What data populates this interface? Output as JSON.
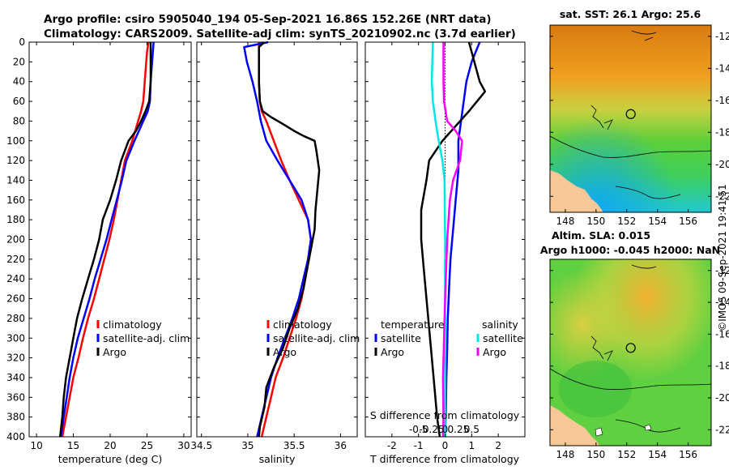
{
  "title_line1": "Argo profile: csiro 5905040_194 05-Sep-2021 16.86S 152.26E (NRT data)",
  "title_line2": "Climatology: CARS2009. Satellite-adj clim: synTS_20210902.nc (3.7d earlier)",
  "timestamp": "©IMOS 09-Sep-2021 19:41:51",
  "colors": {
    "climatology": "#ff0000",
    "satellite": "#0000ff",
    "argo": "#000000",
    "sal_satellite": "#00e6e6",
    "sal_argo": "#ff00ff",
    "land": "#f8c797"
  },
  "chart_data": [
    {
      "type": "line",
      "name": "temperature-profile",
      "xlabel": "temperature (deg C)",
      "ylabel": "",
      "xlim": [
        9,
        31
      ],
      "ylim": [
        0,
        400
      ],
      "y_reversed": true,
      "x_ticks": [
        "10",
        "15",
        "20",
        "25",
        "30"
      ],
      "x_tick_values": [
        10,
        15,
        20,
        25,
        30
      ],
      "y_ticks": [
        "0",
        "20",
        "40",
        "60",
        "80",
        "100",
        "120",
        "140",
        "160",
        "180",
        "200",
        "220",
        "240",
        "260",
        "280",
        "300",
        "320",
        "340",
        "360",
        "380",
        "400"
      ],
      "y_tick_values": [
        0,
        20,
        40,
        60,
        80,
        100,
        120,
        140,
        160,
        180,
        200,
        220,
        240,
        260,
        280,
        300,
        320,
        340,
        360,
        380,
        400
      ],
      "series": [
        {
          "name": "climatology",
          "color": "#ff0000",
          "points": [
            [
              25.2,
              0
            ],
            [
              25.0,
              10
            ],
            [
              24.8,
              30
            ],
            [
              24.6,
              50
            ],
            [
              24.5,
              60
            ],
            [
              24.2,
              70
            ],
            [
              23.8,
              80
            ],
            [
              23.0,
              100
            ],
            [
              22.0,
              120
            ],
            [
              21.5,
              140
            ],
            [
              21.0,
              160
            ],
            [
              20.5,
              180
            ],
            [
              19.9,
              200
            ],
            [
              19.2,
              220
            ],
            [
              18.5,
              240
            ],
            [
              17.8,
              260
            ],
            [
              17.0,
              280
            ],
            [
              16.3,
              300
            ],
            [
              15.7,
              320
            ],
            [
              15.0,
              340
            ],
            [
              14.5,
              360
            ],
            [
              14.0,
              380
            ],
            [
              13.5,
              400
            ]
          ]
        },
        {
          "name": "satellite-adj. clim",
          "color": "#0000ff",
          "points": [
            [
              25.9,
              0
            ],
            [
              25.7,
              20
            ],
            [
              25.5,
              40
            ],
            [
              25.4,
              60
            ],
            [
              25.1,
              70
            ],
            [
              24.5,
              80
            ],
            [
              23.3,
              100
            ],
            [
              22.2,
              120
            ],
            [
              21.6,
              140
            ],
            [
              20.9,
              160
            ],
            [
              20.2,
              180
            ],
            [
              19.5,
              200
            ],
            [
              18.7,
              220
            ],
            [
              17.9,
              240
            ],
            [
              17.2,
              260
            ],
            [
              16.4,
              280
            ],
            [
              15.6,
              300
            ],
            [
              15.0,
              320
            ],
            [
              14.5,
              340
            ],
            [
              14.1,
              360
            ],
            [
              13.7,
              380
            ],
            [
              13.3,
              400
            ]
          ]
        },
        {
          "name": "Argo",
          "color": "#000000",
          "points": [
            [
              25.5,
              0
            ],
            [
              25.5,
              20
            ],
            [
              25.5,
              40
            ],
            [
              25.3,
              60
            ],
            [
              24.8,
              70
            ],
            [
              24.2,
              80
            ],
            [
              23.5,
              90
            ],
            [
              22.5,
              100
            ],
            [
              21.5,
              120
            ],
            [
              20.8,
              140
            ],
            [
              20.0,
              160
            ],
            [
              19.0,
              180
            ],
            [
              18.5,
              200
            ],
            [
              17.8,
              220
            ],
            [
              17.0,
              240
            ],
            [
              16.2,
              260
            ],
            [
              15.5,
              280
            ],
            [
              15.0,
              300
            ],
            [
              14.5,
              320
            ],
            [
              14.0,
              340
            ],
            [
              13.7,
              360
            ],
            [
              13.5,
              380
            ],
            [
              13.2,
              400
            ]
          ]
        }
      ],
      "legend": {
        "placement": "right-middle",
        "entries": [
          "climatology",
          "satellite-adj. clim",
          "Argo"
        ]
      }
    },
    {
      "type": "line",
      "name": "salinity-profile",
      "xlabel": "salinity",
      "xlim": [
        34.45,
        36.18
      ],
      "ylim": [
        0,
        400
      ],
      "y_reversed": true,
      "x_ticks": [
        "34.5",
        "35",
        "35.5",
        "36"
      ],
      "x_tick_values": [
        34.5,
        35,
        35.5,
        36
      ],
      "series": [
        {
          "name": "climatology",
          "color": "#ff0000",
          "points": [
            [
              35.12,
              0
            ],
            [
              35.12,
              20
            ],
            [
              35.12,
              40
            ],
            [
              35.13,
              60
            ],
            [
              35.15,
              70
            ],
            [
              35.2,
              80
            ],
            [
              35.28,
              100
            ],
            [
              35.36,
              120
            ],
            [
              35.45,
              140
            ],
            [
              35.55,
              160
            ],
            [
              35.65,
              180
            ],
            [
              35.68,
              200
            ],
            [
              35.65,
              220
            ],
            [
              35.62,
              240
            ],
            [
              35.58,
              260
            ],
            [
              35.52,
              280
            ],
            [
              35.45,
              300
            ],
            [
              35.38,
              320
            ],
            [
              35.3,
              340
            ],
            [
              35.25,
              360
            ],
            [
              35.2,
              380
            ],
            [
              35.15,
              400
            ]
          ]
        },
        {
          "name": "satellite-adj. clim",
          "color": "#0000ff",
          "points": [
            [
              35.22,
              0
            ],
            [
              34.96,
              5
            ],
            [
              34.99,
              20
            ],
            [
              35.05,
              40
            ],
            [
              35.1,
              60
            ],
            [
              35.14,
              80
            ],
            [
              35.2,
              100
            ],
            [
              35.32,
              120
            ],
            [
              35.45,
              140
            ],
            [
              35.58,
              160
            ],
            [
              35.65,
              180
            ],
            [
              35.68,
              200
            ],
            [
              35.65,
              220
            ],
            [
              35.6,
              240
            ],
            [
              35.55,
              260
            ],
            [
              35.48,
              280
            ],
            [
              35.4,
              300
            ],
            [
              35.32,
              320
            ],
            [
              35.25,
              340
            ],
            [
              35.2,
              360
            ],
            [
              35.15,
              380
            ],
            [
              35.1,
              400
            ]
          ]
        },
        {
          "name": "Argo",
          "color": "#000000",
          "points": [
            [
              35.18,
              0
            ],
            [
              35.12,
              5
            ],
            [
              35.12,
              20
            ],
            [
              35.12,
              40
            ],
            [
              35.13,
              60
            ],
            [
              35.16,
              70
            ],
            [
              35.25,
              76
            ],
            [
              35.36,
              82
            ],
            [
              35.5,
              90
            ],
            [
              35.6,
              95
            ],
            [
              35.72,
              100
            ],
            [
              35.74,
              110
            ],
            [
              35.77,
              130
            ],
            [
              35.75,
              150
            ],
            [
              35.73,
              170
            ],
            [
              35.72,
              190
            ],
            [
              35.68,
              210
            ],
            [
              35.64,
              230
            ],
            [
              35.6,
              250
            ],
            [
              35.54,
              270
            ],
            [
              35.45,
              290
            ],
            [
              35.38,
              310
            ],
            [
              35.28,
              330
            ],
            [
              35.2,
              350
            ],
            [
              35.18,
              370
            ],
            [
              35.13,
              390
            ],
            [
              35.12,
              400
            ]
          ]
        }
      ],
      "legend": {
        "placement": "right-middle",
        "entries": [
          "climatology",
          "satellite-adj. clim",
          "Argo"
        ]
      }
    },
    {
      "type": "line",
      "name": "difference-profile",
      "xlabel": "T difference from climatology",
      "top_label": "S difference from climatology",
      "xlim": [
        -3,
        3
      ],
      "ylim": [
        0,
        400
      ],
      "y_reversed": true,
      "x_ticks": [
        "-2",
        "-1",
        "0",
        "1",
        "2"
      ],
      "x_tick_values": [
        -2,
        -1,
        0,
        1,
        2
      ],
      "s_ticks": [
        "-0.5",
        "-0.25",
        "0",
        "0.25",
        "0.5"
      ],
      "s_tick_values": [
        -0.5,
        -0.25,
        0,
        0.25,
        0.5
      ],
      "series": [
        {
          "name": "temperature satellite",
          "color": "#0000ff",
          "points": [
            [
              1.3,
              0
            ],
            [
              1.0,
              20
            ],
            [
              0.8,
              40
            ],
            [
              0.7,
              60
            ],
            [
              0.6,
              80
            ],
            [
              0.5,
              100
            ],
            [
              0.5,
              130
            ],
            [
              0.4,
              160
            ],
            [
              0.3,
              190
            ],
            [
              0.2,
              220
            ],
            [
              0.15,
              250
            ],
            [
              0.1,
              280
            ],
            [
              0.08,
              310
            ],
            [
              0.05,
              340
            ],
            [
              0.03,
              370
            ],
            [
              0.0,
              400
            ]
          ]
        },
        {
          "name": "temperature Argo",
          "color": "#000000",
          "points": [
            [
              0.9,
              0
            ],
            [
              1.1,
              20
            ],
            [
              1.3,
              40
            ],
            [
              1.5,
              50
            ],
            [
              0.9,
              70
            ],
            [
              0.4,
              85
            ],
            [
              -0.1,
              100
            ],
            [
              -0.6,
              120
            ],
            [
              -0.7,
              140
            ],
            [
              -0.9,
              170
            ],
            [
              -0.9,
              200
            ],
            [
              -0.8,
              230
            ],
            [
              -0.7,
              260
            ],
            [
              -0.6,
              290
            ],
            [
              -0.5,
              320
            ],
            [
              -0.4,
              350
            ],
            [
              -0.3,
              380
            ],
            [
              -0.2,
              400
            ]
          ]
        },
        {
          "name": "salinity satellite",
          "color": "#00e6e6",
          "points": [
            [
              -0.23,
              0
            ],
            [
              -0.24,
              20
            ],
            [
              -0.25,
              40
            ],
            [
              -0.23,
              60
            ],
            [
              -0.18,
              80
            ],
            [
              -0.12,
              100
            ],
            [
              -0.05,
              120
            ],
            [
              -0.01,
              140
            ],
            [
              0.0,
              200
            ],
            [
              0.0,
              300
            ],
            [
              0.0,
              400
            ]
          ]
        },
        {
          "name": "salinity Argo",
          "color": "#ff00ff",
          "points": [
            [
              -0.03,
              0
            ],
            [
              -0.03,
              40
            ],
            [
              -0.02,
              60
            ],
            [
              0.04,
              80
            ],
            [
              0.2,
              90
            ],
            [
              0.32,
              100
            ],
            [
              0.28,
              120
            ],
            [
              0.15,
              140
            ],
            [
              0.09,
              160
            ],
            [
              0.04,
              200
            ],
            [
              0.0,
              260
            ],
            [
              -0.02,
              300
            ],
            [
              -0.04,
              340
            ],
            [
              -0.03,
              380
            ],
            [
              -0.04,
              400
            ]
          ]
        }
      ],
      "legend_left": {
        "header": "temperature",
        "entries": [
          "satellite",
          "Argo"
        ]
      },
      "legend_right": {
        "header": "salinity",
        "entries": [
          "satellite",
          "Argo"
        ]
      }
    },
    {
      "type": "heatmap",
      "name": "sst-map",
      "title": "sat. SST: 26.1 Argo: 25.6",
      "xlim": [
        147,
        157.5
      ],
      "ylim": [
        -23,
        -11.3
      ],
      "x_ticks": [],
      "y_ticks": [
        "-12",
        "-14",
        "-16",
        "-18",
        "-20",
        "-22"
      ],
      "y_tick_values": [
        -12,
        -14,
        -16,
        -18,
        -20,
        -22
      ],
      "argo_position": [
        152.26,
        -16.86
      ]
    },
    {
      "type": "heatmap",
      "name": "sla-map",
      "title_line1": "Altim. SLA: 0.015",
      "title_line2": "Argo h1000: -0.045 h2000: NaN",
      "xlim": [
        147,
        157.5
      ],
      "ylim": [
        -23,
        -11.3
      ],
      "x_ticks": [
        "148",
        "150",
        "152",
        "154",
        "156"
      ],
      "x_tick_values": [
        148,
        150,
        152,
        154,
        156
      ],
      "y_ticks": [
        "-12",
        "-14",
        "-16",
        "-18",
        "-20",
        "-22"
      ],
      "y_tick_values": [
        -12,
        -14,
        -16,
        -18,
        -20,
        -22
      ],
      "argo_position": [
        152.26,
        -16.86
      ]
    }
  ]
}
